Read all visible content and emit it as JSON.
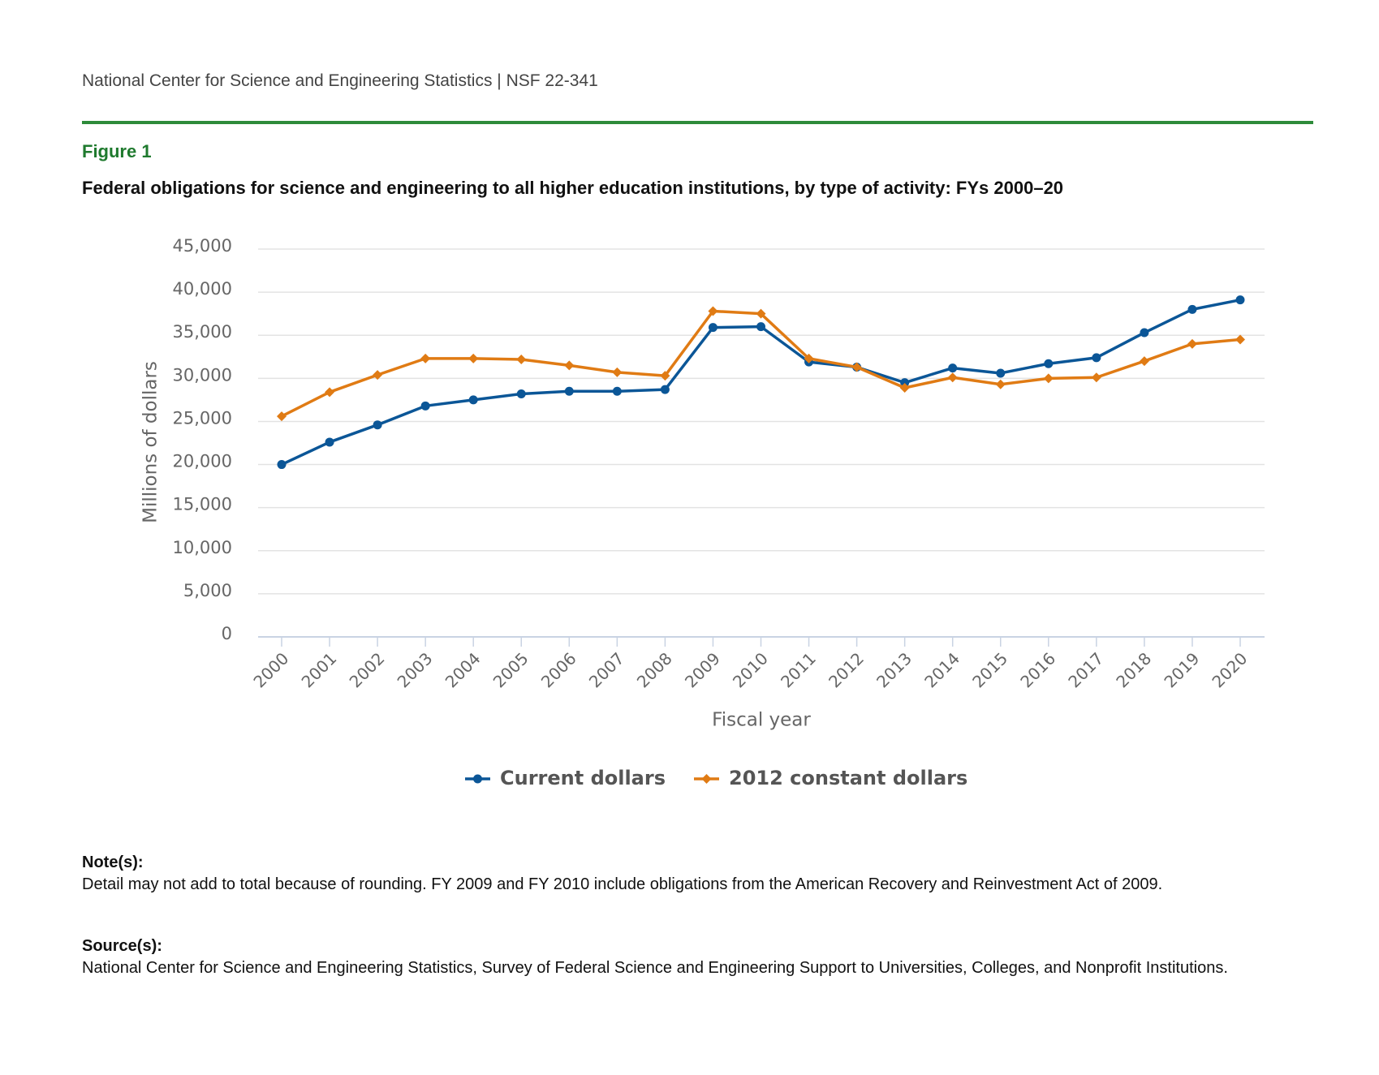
{
  "header": "National Center for Science and Engineering Statistics  |  NSF 22-341",
  "figure_label": "Figure 1",
  "chart_data": {
    "type": "line",
    "title": "Federal obligations for science and engineering to all higher education institutions, by type of activity: FYs 2000–20",
    "x_label": "Fiscal year",
    "y_label": "Millions of dollars",
    "categories": [
      "2000",
      "2001",
      "2002",
      "2003",
      "2004",
      "2005",
      "2006",
      "2007",
      "2008",
      "2009",
      "2010",
      "2011",
      "2012",
      "2013",
      "2014",
      "2015",
      "2016",
      "2017",
      "2018",
      "2019",
      "2020"
    ],
    "series": [
      {
        "name": "Current dollars",
        "color": "#0b5697",
        "marker": "circle",
        "values": [
          20000,
          22600,
          24600,
          26800,
          27500,
          28200,
          28500,
          28500,
          28700,
          35900,
          36000,
          31900,
          31300,
          29500,
          31200,
          30600,
          31700,
          32400,
          35300,
          38000,
          39100
        ]
      },
      {
        "name": "2012 constant dollars",
        "color": "#e07b14",
        "marker": "diamond",
        "values": [
          25600,
          28400,
          30400,
          32300,
          32300,
          32200,
          31500,
          30700,
          30300,
          37800,
          37500,
          32300,
          31300,
          28900,
          30100,
          29300,
          30000,
          30100,
          32000,
          34000,
          34500
        ]
      }
    ],
    "ylim": [
      0,
      45000
    ],
    "yticks": [
      0,
      {
        "value": 5000,
        "label": "5,000"
      },
      {
        "value": 10000,
        "label": "10,000"
      },
      {
        "value": 15000,
        "label": "15,000"
      },
      {
        "value": 20000,
        "label": "20,000"
      },
      {
        "value": 25000,
        "label": "25,000"
      },
      {
        "value": 30000,
        "label": "30,000"
      },
      {
        "value": 35000,
        "label": "35,000"
      },
      {
        "value": 40000,
        "label": "40,000"
      },
      {
        "value": 45000,
        "label": "45,000"
      }
    ],
    "grid": true,
    "legend": "bottom"
  },
  "notes": {
    "heading": "Note(s):",
    "text": "Detail may not add to total because of rounding. FY 2009 and FY 2010 include obligations from the American Recovery and Reinvestment Act of 2009."
  },
  "source": {
    "heading": "Source(s):",
    "text": "National Center for Science and Engineering Statistics, Survey of Federal Science and Engineering Support to Universities, Colleges, and Nonprofit Institutions."
  }
}
